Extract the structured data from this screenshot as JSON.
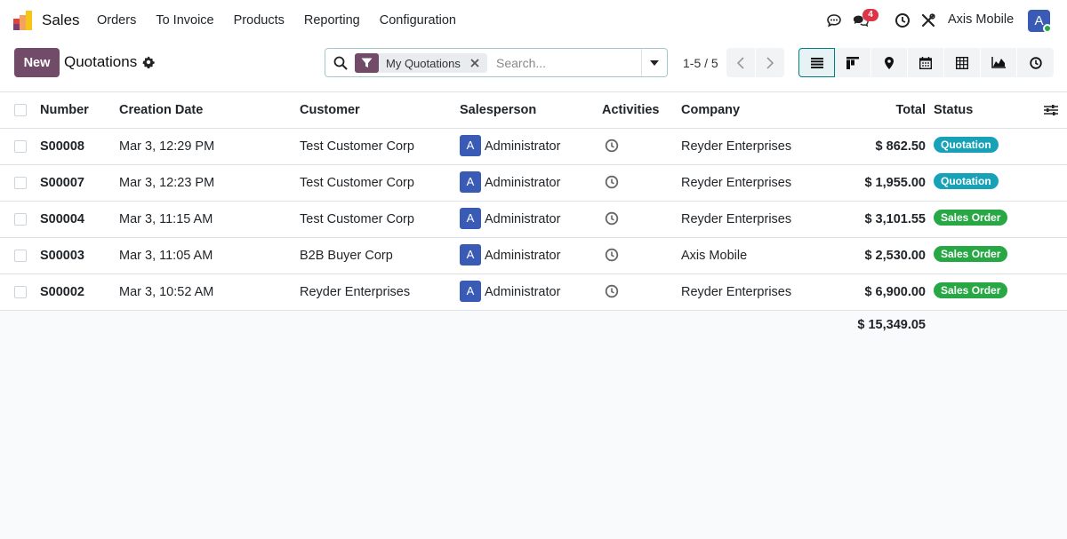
{
  "navbar": {
    "app_name": "Sales",
    "menu": [
      "Orders",
      "To Invoice",
      "Products",
      "Reporting",
      "Configuration"
    ],
    "messages_count": "4",
    "company": "Axis Mobile",
    "user_initial": "A"
  },
  "control": {
    "new_label": "New",
    "title": "Quotations",
    "facet_label": "My Quotations",
    "search_placeholder": "Search...",
    "pager": "1-5 / 5"
  },
  "colors": {
    "brand": "#714b67",
    "quotation": "#17a2b8",
    "sales_order": "#28a745",
    "avatar": "#3a5bb5"
  },
  "table": {
    "headers": {
      "number": "Number",
      "creation_date": "Creation Date",
      "customer": "Customer",
      "salesperson": "Salesperson",
      "activities": "Activities",
      "company": "Company",
      "total": "Total",
      "status": "Status"
    },
    "rows": [
      {
        "number": "S00008",
        "date": "Mar 3, 12:29 PM",
        "customer": "Test Customer Corp",
        "sp_initial": "A",
        "salesperson": "Administrator",
        "company": "Reyder Enterprises",
        "total": "$ 862.50",
        "status": "Quotation"
      },
      {
        "number": "S00007",
        "date": "Mar 3, 12:23 PM",
        "customer": "Test Customer Corp",
        "sp_initial": "A",
        "salesperson": "Administrator",
        "company": "Reyder Enterprises",
        "total": "$ 1,955.00",
        "status": "Quotation"
      },
      {
        "number": "S00004",
        "date": "Mar 3, 11:15 AM",
        "customer": "Test Customer Corp",
        "sp_initial": "A",
        "salesperson": "Administrator",
        "company": "Reyder Enterprises",
        "total": "$ 3,101.55",
        "status": "Sales Order"
      },
      {
        "number": "S00003",
        "date": "Mar 3, 11:05 AM",
        "customer": "B2B Buyer Corp",
        "sp_initial": "A",
        "salesperson": "Administrator",
        "company": "Axis Mobile",
        "total": "$ 2,530.00",
        "status": "Sales Order"
      },
      {
        "number": "S00002",
        "date": "Mar 3, 10:52 AM",
        "customer": "Reyder Enterprises",
        "sp_initial": "A",
        "salesperson": "Administrator",
        "company": "Reyder Enterprises",
        "total": "$ 6,900.00",
        "status": "Sales Order"
      }
    ],
    "grand_total": "$ 15,349.05"
  }
}
